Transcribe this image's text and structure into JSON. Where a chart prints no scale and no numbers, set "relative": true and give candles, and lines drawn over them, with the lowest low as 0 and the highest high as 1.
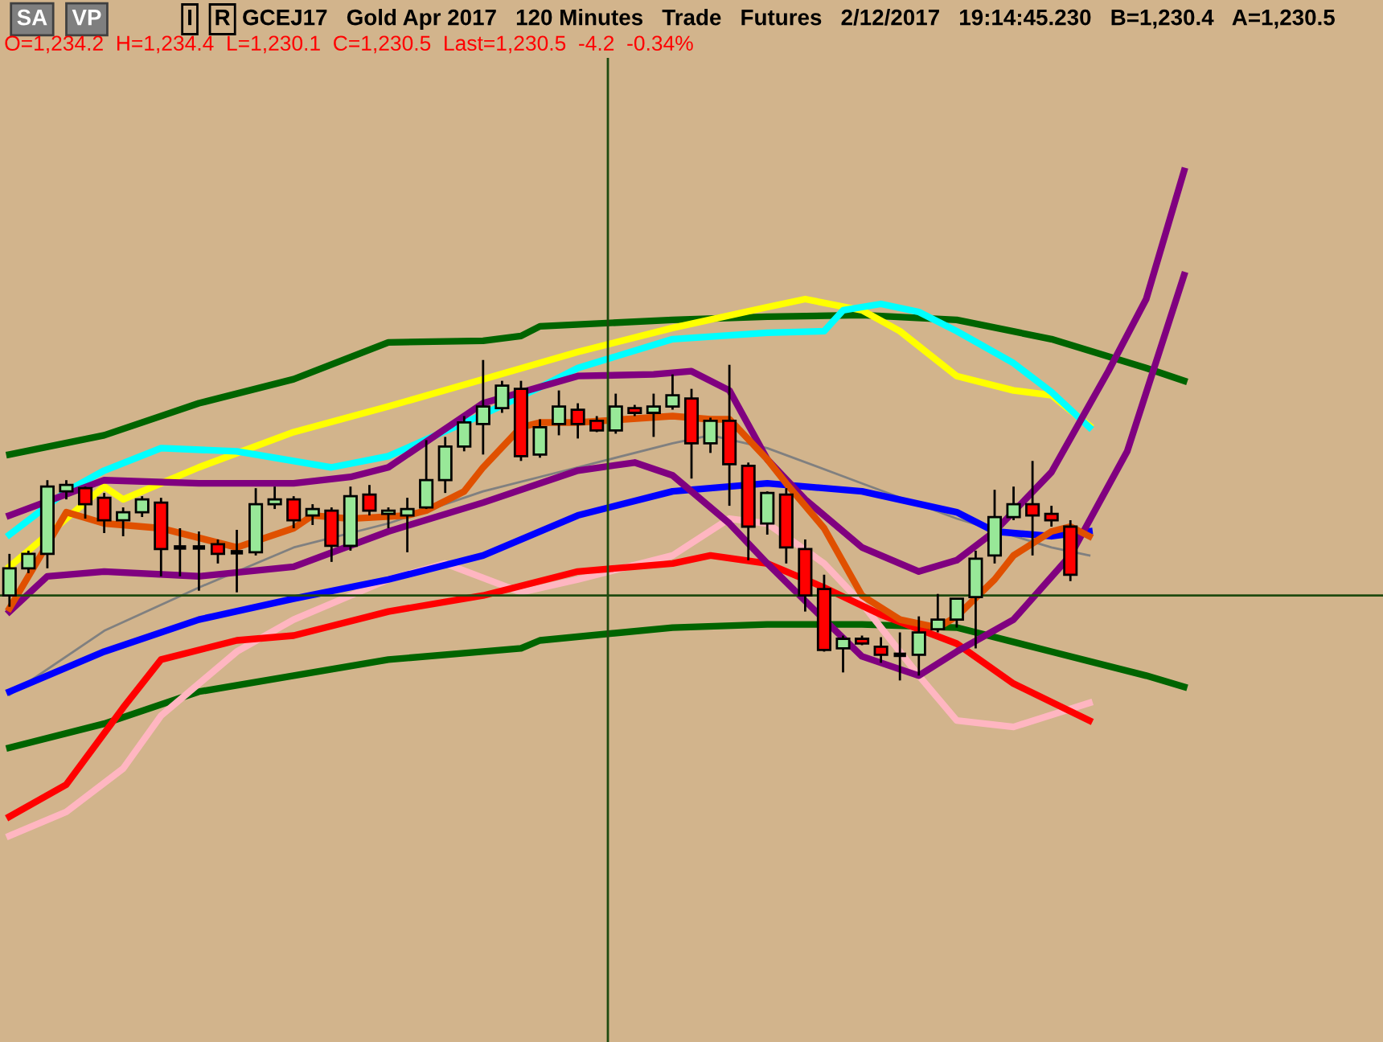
{
  "chart_data": {
    "type": "candlestick",
    "relative": true,
    "title": "GCEJ17   Gold Apr 2017   120 Minutes   Trade   Futures   2/12/2017   19:14:45.230   B=1,230.4   A=1,230.5",
    "subtitle": "O=1,234.2  H=1,234.4  L=1,230.1  C=1,230.5  Last=1,230.5  -4.2  -0.34%",
    "annotations": [
      "SA",
      "VP",
      "I",
      "R"
    ],
    "categories": [
      null,
      null,
      null,
      null,
      null,
      null,
      null,
      null,
      null,
      null,
      null,
      null,
      null,
      null,
      null,
      null,
      null,
      null,
      null,
      null,
      null,
      null,
      null,
      null,
      null,
      null,
      null,
      null,
      null,
      null,
      null,
      null,
      null,
      null,
      null,
      null,
      null,
      null,
      null,
      null,
      null,
      null,
      null,
      null,
      null,
      null,
      null,
      null,
      null,
      null,
      null,
      null,
      null,
      null,
      null,
      null,
      null,
      null,
      null,
      null,
      null,
      null,
      null,
      null,
      null,
      null,
      null,
      null,
      null,
      null,
      null,
      null,
      null
    ],
    "ohlc": [
      [
        0.265,
        0.395,
        0.23,
        0.35
      ],
      [
        0.35,
        0.405,
        0.335,
        0.395
      ],
      [
        0.395,
        0.625,
        0.35,
        0.605
      ],
      [
        0.59,
        0.625,
        0.565,
        0.61
      ],
      [
        0.6,
        0.605,
        0.505,
        0.55
      ],
      [
        0.57,
        0.585,
        0.46,
        0.5
      ],
      [
        0.5,
        0.54,
        0.45,
        0.525
      ],
      [
        0.525,
        0.575,
        0.51,
        0.565
      ],
      [
        0.555,
        0.57,
        0.325,
        0.41
      ],
      [
        0.415,
        0.475,
        0.325,
        0.415
      ],
      [
        0.415,
        0.465,
        0.28,
        0.415
      ],
      [
        0.425,
        0.44,
        0.365,
        0.395
      ],
      [
        0.4,
        0.47,
        0.275,
        0.4
      ],
      [
        0.4,
        0.6,
        0.39,
        0.55
      ],
      [
        0.55,
        0.605,
        0.535,
        0.565
      ],
      [
        0.565,
        0.575,
        0.475,
        0.5
      ],
      [
        0.515,
        0.55,
        0.485,
        0.535
      ],
      [
        0.53,
        0.54,
        0.37,
        0.42
      ],
      [
        0.42,
        0.605,
        0.405,
        0.575
      ],
      [
        0.58,
        0.61,
        0.515,
        0.53
      ],
      [
        0.52,
        0.54,
        0.475,
        0.53
      ],
      [
        0.515,
        0.57,
        0.4,
        0.535
      ],
      [
        0.54,
        0.75,
        0.535,
        0.625
      ],
      [
        0.625,
        0.76,
        0.585,
        0.73
      ],
      [
        0.73,
        0.825,
        0.715,
        0.805
      ],
      [
        0.8,
        1.0,
        0.705,
        0.855
      ],
      [
        0.85,
        0.935,
        0.835,
        0.92
      ],
      [
        0.91,
        0.935,
        0.685,
        0.7
      ],
      [
        0.705,
        0.815,
        0.695,
        0.79
      ],
      [
        0.8,
        0.905,
        0.765,
        0.855
      ],
      [
        0.845,
        0.865,
        0.755,
        0.8
      ],
      [
        0.81,
        0.825,
        0.775,
        0.78
      ],
      [
        0.78,
        0.895,
        0.77,
        0.855
      ],
      [
        0.85,
        0.86,
        0.825,
        0.835
      ],
      [
        0.835,
        0.895,
        0.76,
        0.855
      ],
      [
        0.855,
        0.955,
        0.845,
        0.89
      ],
      [
        0.88,
        0.91,
        0.63,
        0.74
      ],
      [
        0.74,
        0.82,
        0.71,
        0.81
      ],
      [
        0.81,
        0.985,
        0.545,
        0.675
      ],
      [
        0.67,
        0.68,
        0.375,
        0.48
      ],
      [
        0.49,
        0.59,
        0.455,
        0.585
      ],
      [
        0.58,
        0.6,
        0.365,
        0.415
      ],
      [
        0.41,
        0.44,
        0.215,
        0.265
      ],
      [
        0.285,
        0.33,
        0.09,
        0.095
      ],
      [
        0.1,
        0.14,
        0.025,
        0.13
      ],
      [
        0.13,
        0.14,
        0.11,
        0.115
      ],
      [
        0.105,
        0.135,
        0.055,
        0.08
      ],
      [
        0.08,
        0.15,
        0.0,
        0.08
      ],
      [
        0.08,
        0.2,
        0.015,
        0.15
      ],
      [
        0.16,
        0.27,
        0.15,
        0.19
      ],
      [
        0.19,
        0.255,
        0.165,
        0.255
      ],
      [
        0.26,
        0.405,
        0.1,
        0.38
      ],
      [
        0.39,
        0.595,
        0.365,
        0.51
      ],
      [
        0.51,
        0.605,
        0.5,
        0.55
      ],
      [
        0.55,
        0.685,
        0.39,
        0.515
      ],
      [
        0.52,
        0.545,
        0.48,
        0.5
      ],
      [
        0.48,
        0.5,
        0.31,
        0.33
      ],
      null,
      null,
      null,
      null,
      null,
      null,
      null,
      null,
      null,
      null,
      null,
      null,
      null,
      null,
      null,
      null
    ],
    "colors": [
      "#98e898",
      "#98e898",
      "#98e898",
      "#98e898",
      "#ff0000",
      "#ff0000",
      "#98e898",
      "#98e898",
      "#ff0000",
      "#000000",
      "#000000",
      "#ff0000",
      "#000000",
      "#98e898",
      "#98e898",
      "#ff0000",
      "#98e898",
      "#ff0000",
      "#98e898",
      "#ff0000",
      "#98e898",
      "#98e898",
      "#98e898",
      "#98e898",
      "#98e898",
      "#98e898",
      "#98e898",
      "#ff0000",
      "#98e898",
      "#98e898",
      "#ff0000",
      "#ff0000",
      "#98e898",
      "#ff0000",
      "#98e898",
      "#98e898",
      "#ff0000",
      "#98e898",
      "#ff0000",
      "#ff0000",
      "#98e898",
      "#ff0000",
      "#ff0000",
      "#ff0000",
      "#98e898",
      "#ff0000",
      "#ff0000",
      "#000000",
      "#98e898",
      "#98e898",
      "#98e898",
      "#98e898",
      "#98e898",
      "#98e898",
      "#ff0000",
      "#ff0000",
      "#ff0000",
      null,
      null,
      null,
      null,
      null,
      null,
      null,
      null,
      null,
      null,
      null,
      null,
      null,
      null,
      null,
      null
    ],
    "series": [
      {
        "type": "line",
        "color": "#006400",
        "values": [
          0.705,
          null,
          null,
          null,
          null,
          0.765,
          null,
          null,
          null,
          null,
          0.865,
          null,
          null,
          null,
          null,
          0.94,
          null,
          null,
          null,
          null,
          1.055,
          null,
          null,
          null,
          null,
          1.06,
          null,
          1.075,
          1.105,
          null,
          null,
          null,
          null,
          null,
          null,
          1.125,
          null,
          null,
          null,
          null,
          1.135,
          null,
          null,
          null,
          null,
          1.14,
          null,
          null,
          null,
          null,
          1.125,
          null,
          null,
          null,
          null,
          1.065,
          null,
          null,
          null,
          null,
          0.975,
          null,
          0.935,
          null,
          null,
          null,
          null,
          null,
          null,
          null,
          null,
          null,
          null
        ]
      },
      {
        "type": "line",
        "color": "#006400",
        "values": [
          -0.21,
          null,
          null,
          null,
          null,
          -0.135,
          null,
          null,
          null,
          null,
          -0.035,
          null,
          null,
          null,
          null,
          0.015,
          null,
          null,
          null,
          null,
          0.065,
          null,
          null,
          null,
          null,
          0.09,
          null,
          0.1,
          0.125,
          null,
          null,
          null,
          null,
          null,
          null,
          0.165,
          null,
          null,
          null,
          null,
          0.175,
          null,
          null,
          null,
          null,
          0.175,
          null,
          null,
          null,
          null,
          0.165,
          null,
          null,
          null,
          null,
          0.09,
          null,
          null,
          null,
          null,
          0.015,
          null,
          -0.02,
          null,
          null,
          null,
          null,
          null,
          null,
          null,
          null,
          null,
          null
        ]
      },
      {
        "type": "line",
        "color": "#808080",
        "values": [
          -0.045,
          null,
          null,
          null,
          null,
          0.155,
          null,
          null,
          null,
          null,
          0.29,
          null,
          null,
          null,
          null,
          0.415,
          null,
          null,
          null,
          null,
          0.49,
          null,
          null,
          null,
          null,
          0.59,
          null,
          null,
          null,
          null,
          0.665,
          null,
          null,
          null,
          null,
          0.74,
          null,
          0.765,
          null,
          null,
          0.725,
          null,
          null,
          null,
          null,
          0.615,
          null,
          null,
          null,
          null,
          0.505,
          null,
          null,
          null,
          null,
          0.415,
          null,
          0.39,
          null,
          null,
          null,
          null,
          null,
          null,
          null,
          null,
          null,
          null,
          null,
          null,
          null,
          null,
          null
        ]
      },
      {
        "type": "line",
        "color": "#ffb6c1",
        "values": [
          -0.485,
          null,
          null,
          -0.41,
          null,
          null,
          -0.275,
          null,
          -0.11,
          null,
          null,
          null,
          0.09,
          null,
          null,
          0.19,
          null,
          null,
          null,
          null,
          0.315,
          null,
          null,
          0.365,
          null,
          null,
          null,
          0.275,
          null,
          null,
          0.315,
          null,
          null,
          null,
          null,
          0.39,
          null,
          null,
          0.505,
          null,
          0.49,
          null,
          null,
          0.365,
          null,
          0.24,
          null,
          null,
          0.015,
          null,
          -0.125,
          null,
          null,
          -0.145,
          null,
          null,
          null,
          -0.07,
          null,
          null,
          null,
          null,
          null,
          null,
          null,
          null,
          null,
          null,
          null,
          null,
          null,
          null,
          null
        ]
      },
      {
        "type": "line",
        "color": "#ff0000",
        "values": [
          -0.425,
          null,
          null,
          -0.325,
          null,
          null,
          -0.085,
          null,
          0.065,
          null,
          null,
          null,
          0.125,
          null,
          null,
          0.14,
          null,
          null,
          null,
          null,
          0.215,
          null,
          null,
          null,
          null,
          0.265,
          null,
          null,
          null,
          null,
          0.34,
          null,
          null,
          null,
          null,
          0.365,
          null,
          0.39,
          null,
          null,
          0.365,
          null,
          null,
          0.29,
          null,
          null,
          0.205,
          null,
          null,
          null,
          0.115,
          null,
          null,
          -0.01,
          null,
          null,
          null,
          -0.125,
          null,
          null,
          null,
          null,
          null,
          null,
          null,
          null,
          null,
          null,
          null,
          null,
          null,
          null,
          null
        ]
      },
      {
        "type": "line",
        "color": "#0000ff",
        "values": [
          -0.035,
          null,
          null,
          null,
          null,
          0.09,
          null,
          null,
          null,
          null,
          0.19,
          null,
          null,
          null,
          null,
          0.255,
          null,
          null,
          null,
          null,
          0.315,
          null,
          null,
          null,
          null,
          0.39,
          null,
          null,
          null,
          null,
          0.515,
          null,
          null,
          null,
          null,
          0.59,
          null,
          null,
          null,
          null,
          0.615,
          null,
          null,
          null,
          null,
          0.59,
          null,
          null,
          null,
          null,
          0.525,
          null,
          0.465,
          null,
          null,
          0.45,
          null,
          0.465,
          null,
          null,
          null,
          null,
          null,
          null,
          null,
          null,
          null,
          null,
          null,
          null,
          null,
          null,
          null
        ]
      },
      {
        "type": "line",
        "color": "#ffff00",
        "values": [
          0.355,
          null,
          null,
          null,
          null,
          0.605,
          0.565,
          null,
          0.615,
          null,
          0.665,
          null,
          null,
          null,
          null,
          0.775,
          null,
          null,
          null,
          null,
          0.855,
          null,
          null,
          null,
          null,
          0.94,
          null,
          null,
          null,
          null,
          1.025,
          null,
          null,
          null,
          null,
          1.1,
          null,
          null,
          null,
          null,
          1.165,
          null,
          1.19,
          null,
          null,
          1.155,
          null,
          1.09,
          null,
          null,
          0.95,
          null,
          null,
          0.905,
          null,
          0.89,
          null,
          0.795,
          null,
          null,
          null,
          null,
          null,
          null,
          null,
          null,
          null,
          null,
          null,
          null,
          null,
          null,
          null
        ]
      },
      {
        "type": "line",
        "color": "#00ffff",
        "values": [
          0.455,
          null,
          null,
          0.59,
          null,
          0.655,
          null,
          null,
          0.725,
          null,
          null,
          null,
          0.715,
          null,
          null,
          null,
          null,
          0.665,
          null,
          null,
          0.7,
          null,
          null,
          null,
          null,
          0.83,
          null,
          null,
          0.915,
          null,
          0.975,
          null,
          null,
          null,
          null,
          1.065,
          null,
          null,
          null,
          null,
          1.085,
          null,
          null,
          1.09,
          1.155,
          null,
          1.175,
          null,
          1.15,
          null,
          1.09,
          null,
          null,
          0.99,
          null,
          0.9,
          null,
          0.79,
          null,
          null,
          null,
          null,
          null,
          null,
          null,
          null,
          null,
          null,
          null,
          null,
          null,
          null,
          null
        ]
      },
      {
        "type": "line",
        "color": "#800080",
        "values": [
          0.515,
          null,
          null,
          null,
          null,
          0.625,
          null,
          null,
          null,
          null,
          0.615,
          null,
          null,
          null,
          null,
          0.615,
          null,
          null,
          0.635,
          null,
          0.665,
          null,
          null,
          null,
          null,
          0.865,
          null,
          null,
          null,
          null,
          0.95,
          null,
          null,
          null,
          0.955,
          null,
          0.965,
          null,
          0.905,
          null,
          0.69,
          null,
          0.565,
          null,
          null,
          0.415,
          null,
          null,
          0.34,
          null,
          0.375,
          null,
          0.465,
          null,
          null,
          0.65,
          null,
          null,
          0.965,
          null,
          1.19,
          null,
          1.59,
          null,
          null,
          null,
          null,
          null,
          null,
          null,
          null,
          null,
          null
        ]
      },
      {
        "type": "line",
        "color": "#800080",
        "values": [
          0.215,
          null,
          0.325,
          null,
          null,
          0.34,
          null,
          null,
          null,
          null,
          0.325,
          null,
          null,
          null,
          null,
          0.355,
          null,
          null,
          null,
          null,
          0.465,
          null,
          null,
          null,
          null,
          0.555,
          null,
          null,
          null,
          null,
          0.655,
          null,
          null,
          0.68,
          null,
          0.64,
          null,
          null,
          0.49,
          null,
          0.365,
          null,
          null,
          0.19,
          null,
          0.075,
          null,
          null,
          0.015,
          null,
          0.09,
          null,
          null,
          0.19,
          null,
          null,
          0.39,
          null,
          null,
          0.715,
          null,
          null,
          1.265,
          null,
          null,
          null,
          null,
          null,
          null,
          null,
          null,
          null,
          null
        ]
      },
      {
        "type": "line",
        "color": "#e05000",
        "values": [
          0.225,
          null,
          null,
          0.525,
          null,
          0.49,
          null,
          null,
          0.475,
          null,
          null,
          null,
          0.415,
          null,
          null,
          0.475,
          0.515,
          null,
          0.505,
          null,
          null,
          0.515,
          0.53,
          null,
          0.59,
          0.665,
          null,
          0.79,
          0.805,
          null,
          0.805,
          null,
          null,
          null,
          null,
          0.825,
          null,
          0.815,
          0.815,
          null,
          0.69,
          0.615,
          null,
          0.475,
          null,
          0.265,
          null,
          0.19,
          null,
          0.165,
          0.2,
          null,
          0.315,
          0.39,
          null,
          0.465,
          0.48,
          0.45,
          null,
          null,
          null,
          null,
          null,
          null,
          null,
          null,
          null,
          null,
          null,
          null,
          null,
          null,
          null
        ]
      }
    ],
    "ref_lines": [
      {
        "axis": "y",
        "value": 0.265,
        "color": "#1f4a0f"
      }
    ]
  }
}
